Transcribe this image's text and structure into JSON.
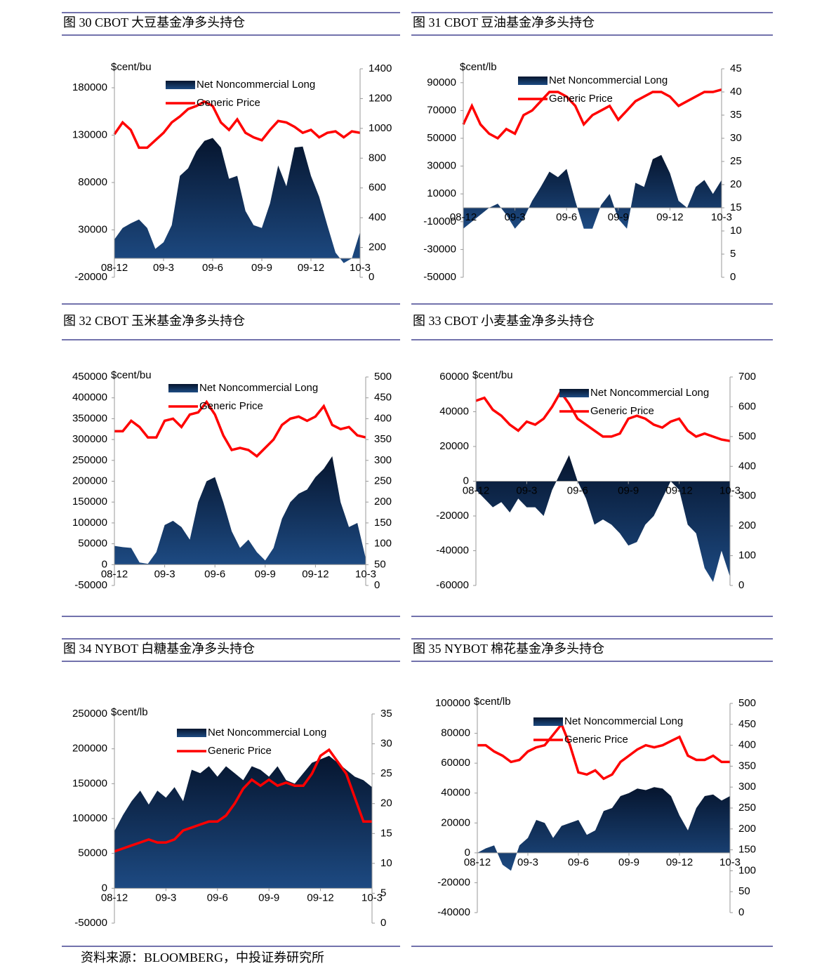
{
  "chart_data": [
    {
      "type": "combo",
      "title": "图 30 CBOT 大豆基金净多头持仓",
      "unit_label": "$cent/bu",
      "categories": [
        "08-12",
        null,
        null,
        null,
        null,
        null,
        "09-3",
        null,
        null,
        null,
        null,
        null,
        "09-6",
        null,
        null,
        null,
        null,
        null,
        "09-9",
        null,
        null,
        null,
        null,
        null,
        "09-12",
        null,
        null,
        null,
        null,
        null,
        "10-3"
      ],
      "ylim": [
        -20000,
        200000
      ],
      "yticks": [
        -20000,
        30000,
        80000,
        130000,
        180000
      ],
      "y2lim": [
        0,
        1400
      ],
      "y2ticks": [
        0,
        200,
        400,
        600,
        800,
        1000,
        1200,
        1400
      ],
      "series": [
        {
          "name": "Net Noncommercial Long",
          "color": "#0d2a52",
          "type": "area",
          "values": [
            20000,
            32000,
            37000,
            41000,
            32000,
            10000,
            17000,
            35000,
            87000,
            95000,
            113000,
            124000,
            127000,
            117000,
            84000,
            87000,
            50000,
            35000,
            32000,
            58000,
            98000,
            76000,
            117000,
            118000,
            87000,
            65000,
            35000,
            6000,
            -5000,
            0,
            28000
          ]
        },
        {
          "name": "Generic Price",
          "color": "#ff0000",
          "type": "line",
          "axis": "y2",
          "values": [
            960,
            1040,
            990,
            870,
            870,
            920,
            970,
            1040,
            1080,
            1130,
            1150,
            1180,
            1150,
            1040,
            990,
            1060,
            970,
            940,
            920,
            990,
            1050,
            1040,
            1010,
            970,
            990,
            940,
            970,
            980,
            940,
            980,
            970
          ]
        }
      ]
    },
    {
      "type": "combo",
      "title": "图 31 CBOT 豆油基金净多头持仓",
      "unit_label": "$cent/lb",
      "categories": [
        "08-12",
        null,
        null,
        null,
        null,
        null,
        "09-3",
        null,
        null,
        null,
        null,
        null,
        "09-6",
        null,
        null,
        null,
        null,
        null,
        "09-9",
        null,
        null,
        null,
        null,
        null,
        "09-12",
        null,
        null,
        null,
        null,
        null,
        "10-3"
      ],
      "ylim": [
        -50000,
        100000
      ],
      "yticks": [
        -50000,
        -30000,
        -10000,
        10000,
        30000,
        50000,
        70000,
        90000
      ],
      "y2lim": [
        0,
        45
      ],
      "y2ticks": [
        0,
        5,
        10,
        15,
        20,
        25,
        30,
        35,
        40,
        45
      ],
      "series": [
        {
          "name": "Net Noncommercial Long",
          "color": "#0d2a52",
          "type": "area",
          "values": [
            -15000,
            -10000,
            -5000,
            0,
            3000,
            -5000,
            -15000,
            -8000,
            5000,
            15000,
            26000,
            22000,
            28000,
            5000,
            -15000,
            -15000,
            2000,
            10000,
            -8000,
            -15000,
            18000,
            15000,
            35000,
            38000,
            25000,
            5000,
            0,
            15000,
            20000,
            10000,
            20000
          ]
        },
        {
          "name": "Generic Price",
          "color": "#ff0000",
          "type": "line",
          "axis": "y2",
          "values": [
            33,
            37,
            33,
            31,
            30,
            32,
            31,
            35,
            36,
            38,
            40,
            40,
            39,
            37,
            33,
            35,
            36,
            37,
            34,
            36,
            38,
            39,
            40,
            40,
            39,
            37,
            38,
            39,
            40,
            40,
            40.5
          ]
        }
      ]
    },
    {
      "type": "combo",
      "title": "图 32 CBOT 玉米基金净多头持仓",
      "unit_label": "$cent/bu",
      "categories": [
        "08-12",
        null,
        null,
        null,
        null,
        null,
        "09-3",
        null,
        null,
        null,
        null,
        null,
        "09-6",
        null,
        null,
        null,
        null,
        null,
        "09-9",
        null,
        null,
        null,
        null,
        null,
        "09-12",
        null,
        null,
        null,
        null,
        null,
        "10-3"
      ],
      "ylim": [
        -50000,
        450000
      ],
      "yticks": [
        -50000,
        0,
        50000,
        100000,
        150000,
        200000,
        250000,
        300000,
        350000,
        400000,
        450000
      ],
      "y2lim": [
        0,
        500
      ],
      "y2ticks": [
        0,
        50,
        100,
        150,
        200,
        250,
        300,
        350,
        400,
        450,
        500
      ],
      "series": [
        {
          "name": "Net Noncommercial Long",
          "color": "#0d2a52",
          "type": "area",
          "values": [
            45000,
            42000,
            40000,
            5000,
            2000,
            30000,
            95000,
            105000,
            90000,
            60000,
            150000,
            200000,
            210000,
            150000,
            80000,
            40000,
            60000,
            30000,
            10000,
            40000,
            110000,
            150000,
            170000,
            180000,
            210000,
            230000,
            260000,
            150000,
            90000,
            100000,
            15000
          ]
        },
        {
          "name": "Generic Price",
          "color": "#ff0000",
          "type": "line",
          "axis": "y2",
          "values": [
            370,
            370,
            395,
            380,
            355,
            355,
            395,
            400,
            380,
            410,
            415,
            440,
            410,
            360,
            325,
            330,
            325,
            310,
            330,
            350,
            385,
            400,
            405,
            395,
            405,
            430,
            385,
            375,
            380,
            360,
            355
          ]
        }
      ]
    },
    {
      "type": "combo",
      "title": "图 33 CBOT 小麦基金净多头持仓",
      "unit_label": "$cent/bu",
      "categories": [
        "08-12",
        null,
        null,
        null,
        null,
        null,
        "09-3",
        null,
        null,
        null,
        null,
        null,
        "09-6",
        null,
        null,
        null,
        null,
        null,
        "09-9",
        null,
        null,
        null,
        null,
        null,
        "09-12",
        null,
        null,
        null,
        null,
        null,
        "10-3"
      ],
      "ylim": [
        -60000,
        60000
      ],
      "yticks": [
        -60000,
        -40000,
        -20000,
        0,
        20000,
        40000,
        60000
      ],
      "y2lim": [
        0,
        700
      ],
      "y2ticks": [
        0,
        100,
        200,
        300,
        400,
        500,
        600,
        700
      ],
      "series": [
        {
          "name": "Net Noncommercial Long",
          "color": "#0d2a52",
          "type": "area",
          "values": [
            -5000,
            -10000,
            -15000,
            -12000,
            -18000,
            -10000,
            -15000,
            -15000,
            -20000,
            -5000,
            5000,
            15000,
            0,
            -10000,
            -25000,
            -22000,
            -25000,
            -30000,
            -37000,
            -35000,
            -25000,
            -20000,
            -10000,
            0,
            -5000,
            -25000,
            -30000,
            -50000,
            -58000,
            -40000,
            -55000
          ]
        },
        {
          "name": "Generic Price",
          "color": "#ff0000",
          "type": "line",
          "axis": "y2",
          "values": [
            620,
            630,
            590,
            570,
            540,
            520,
            550,
            540,
            560,
            600,
            650,
            610,
            560,
            540,
            520,
            500,
            500,
            510,
            560,
            570,
            560,
            540,
            530,
            550,
            560,
            520,
            500,
            510,
            500,
            490,
            485
          ]
        }
      ]
    },
    {
      "type": "combo",
      "title": "图 34 NYBOT 白糖基金净多头持仓",
      "unit_label": "$cent/lb",
      "categories": [
        "08-12",
        null,
        null,
        null,
        null,
        null,
        "09-3",
        null,
        null,
        null,
        null,
        null,
        "09-6",
        null,
        null,
        null,
        null,
        null,
        "09-9",
        null,
        null,
        null,
        null,
        null,
        "09-12",
        null,
        null,
        null,
        null,
        null,
        "10-3"
      ],
      "ylim": [
        -50000,
        250000
      ],
      "yticks": [
        -50000,
        0,
        50000,
        100000,
        150000,
        200000,
        250000
      ],
      "y2lim": [
        0,
        35
      ],
      "y2ticks": [
        0,
        5,
        10,
        15,
        20,
        25,
        30,
        35
      ],
      "series": [
        {
          "name": "Net Noncommercial Long",
          "color": "#0d2a52",
          "type": "area",
          "values": [
            82000,
            105000,
            125000,
            140000,
            120000,
            140000,
            130000,
            145000,
            125000,
            170000,
            165000,
            175000,
            160000,
            175000,
            165000,
            155000,
            175000,
            170000,
            160000,
            175000,
            155000,
            150000,
            165000,
            180000,
            185000,
            190000,
            180000,
            170000,
            160000,
            155000,
            145000
          ]
        },
        {
          "name": "Generic Price",
          "color": "#ff0000",
          "type": "line",
          "axis": "y2",
          "values": [
            12,
            12.5,
            13,
            13.5,
            14,
            13.5,
            13.5,
            14,
            15.5,
            16,
            16.5,
            17,
            17,
            18,
            20,
            22.5,
            24,
            23,
            24,
            23,
            23.5,
            23,
            23,
            25,
            28,
            29,
            27,
            25,
            21,
            17,
            17
          ]
        }
      ]
    },
    {
      "type": "combo",
      "title": "图 35 NYBOT 棉花基金净多头持仓",
      "unit_label": "$cent/lb",
      "categories": [
        "08-12",
        null,
        null,
        null,
        null,
        null,
        "09-3",
        null,
        null,
        null,
        null,
        null,
        "09-6",
        null,
        null,
        null,
        null,
        null,
        "09-9",
        null,
        null,
        null,
        null,
        null,
        "09-12",
        null,
        null,
        null,
        null,
        null,
        "10-3"
      ],
      "ylim": [
        -40000,
        100000
      ],
      "yticks": [
        -40000,
        -20000,
        0,
        20000,
        40000,
        60000,
        80000,
        100000
      ],
      "y2lim": [
        0,
        500
      ],
      "y2ticks": [
        0,
        50,
        100,
        150,
        200,
        250,
        300,
        350,
        400,
        450,
        500
      ],
      "series": [
        {
          "name": "Net Noncommercial Long",
          "color": "#0d2a52",
          "type": "area",
          "values": [
            0,
            3000,
            5000,
            -8000,
            -12000,
            5000,
            10000,
            22000,
            20000,
            10000,
            18000,
            20000,
            22000,
            12000,
            15000,
            28000,
            30000,
            38000,
            40000,
            43000,
            42000,
            44000,
            43000,
            38000,
            25000,
            15000,
            30000,
            38000,
            39000,
            35000,
            38000
          ]
        },
        {
          "name": "Generic Price",
          "color": "#ff0000",
          "type": "line",
          "axis": "y2",
          "values": [
            400,
            400,
            385,
            375,
            360,
            365,
            385,
            395,
            400,
            425,
            450,
            400,
            335,
            330,
            340,
            320,
            330,
            360,
            375,
            390,
            400,
            395,
            400,
            410,
            420,
            375,
            365,
            365,
            375,
            360,
            360
          ]
        }
      ]
    }
  ],
  "source": "资料来源：BLOOMBERG，中投证券研究所"
}
